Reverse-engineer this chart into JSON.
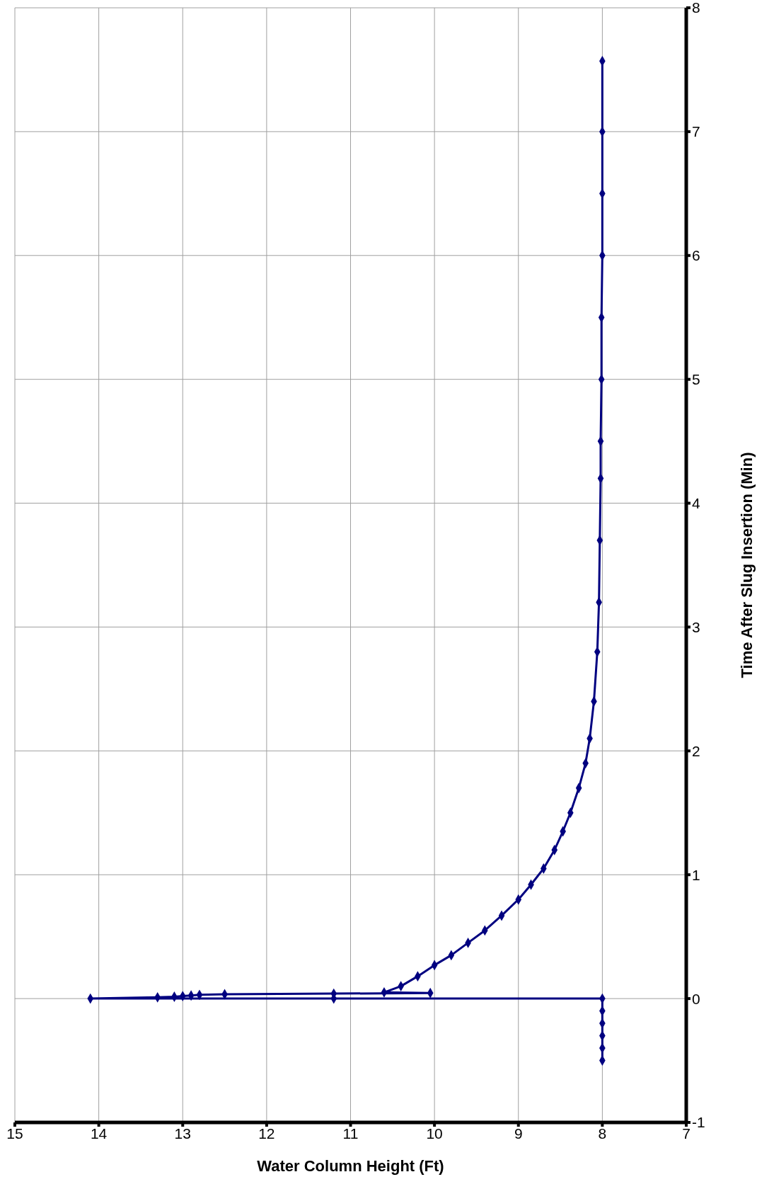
{
  "chart_data": {
    "type": "line",
    "xlabel": "Water Column Height (Ft)",
    "ylabel": "Time After Slug Insertion (Min)",
    "x": [
      8,
      8,
      8,
      8,
      8,
      8,
      11.2,
      14.1,
      13.3,
      13.1,
      13,
      12.9,
      12.8,
      12.5,
      11.2,
      10.05,
      10.6,
      10.4,
      10.2,
      10,
      9.8,
      9.6,
      9.4,
      9.2,
      9,
      8.85,
      8.7,
      8.57,
      8.47,
      8.38,
      8.28,
      8.2,
      8.15,
      8.1,
      8.06,
      8.04,
      8.03,
      8.02,
      8.02,
      8.01,
      8.01,
      8,
      8,
      8,
      8
    ],
    "values": [
      -0.5,
      -0.4,
      -0.3,
      -0.2,
      -0.1,
      0,
      0,
      0,
      0.01,
      0.015,
      0.02,
      0.025,
      0.03,
      0.035,
      0.04,
      0.045,
      0.05,
      0.1,
      0.18,
      0.27,
      0.35,
      0.45,
      0.55,
      0.67,
      0.8,
      0.92,
      1.05,
      1.2,
      1.35,
      1.5,
      1.7,
      1.9,
      2.1,
      2.4,
      2.8,
      3.2,
      3.7,
      4.2,
      4.5,
      5,
      5.5,
      6,
      6.5,
      7,
      7.57
    ],
    "color": "#000080",
    "marker": "diamond",
    "line_style": "solid",
    "grid": true,
    "xlim": [
      15,
      7
    ],
    "xticks": [
      15,
      14,
      13,
      12,
      11,
      10,
      9,
      8,
      7
    ],
    "ylim": [
      -1,
      8
    ],
    "yticks": [
      -1,
      0,
      1,
      2,
      3,
      4,
      5,
      6,
      7,
      8
    ]
  }
}
